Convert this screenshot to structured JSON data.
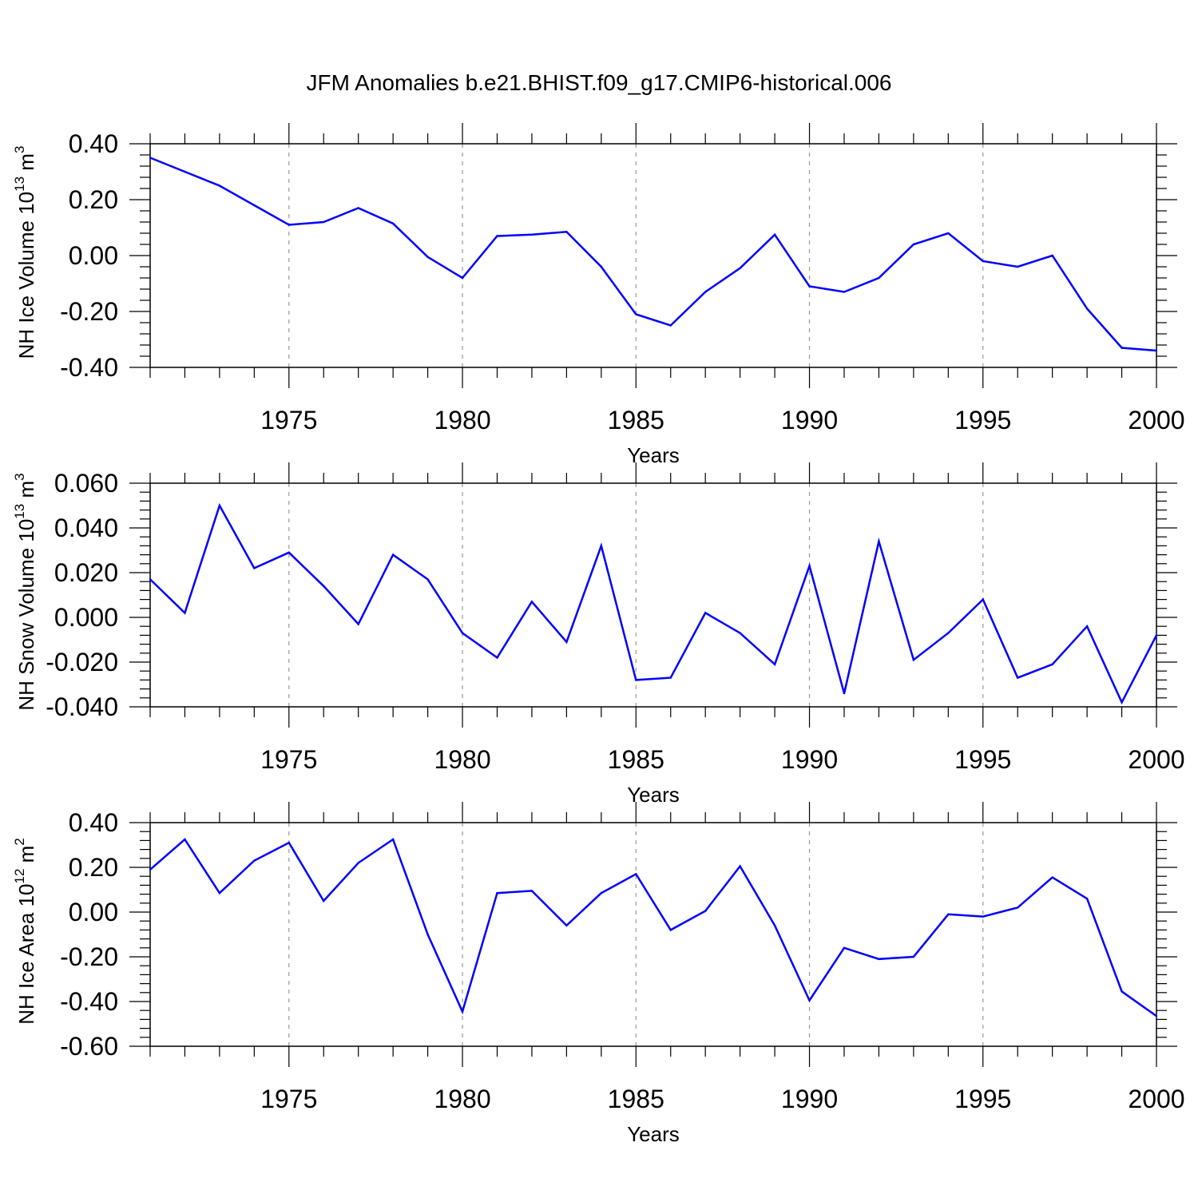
{
  "title": "JFM Anomalies b.e21.BHIST.f09_g17.CMIP6-historical.006",
  "line_color": "#0000ff",
  "chart_data": [
    {
      "type": "line",
      "ylabel": "NH Ice Volume",
      "yunit_base": "10",
      "yunit_exp": "13",
      "yunit_tail": "m",
      "yunit_tail_exp": "3",
      "xlabel": "Years",
      "xlim": [
        1971,
        2000
      ],
      "ylim": [
        -0.4,
        0.4
      ],
      "xticks": [
        1975,
        1980,
        1985,
        1990,
        1995,
        2000
      ],
      "yticks": [
        -0.4,
        -0.2,
        0.0,
        0.2,
        0.4
      ],
      "ytick_labels": [
        "-0.40",
        "-0.20",
        "0.00",
        "0.20",
        "0.40"
      ],
      "x": [
        1971,
        1972,
        1973,
        1974,
        1975,
        1976,
        1977,
        1978,
        1979,
        1980,
        1981,
        1982,
        1983,
        1984,
        1985,
        1986,
        1987,
        1988,
        1989,
        1990,
        1991,
        1992,
        1993,
        1994,
        1995,
        1996,
        1997,
        1998,
        1999,
        2000
      ],
      "y": [
        0.35,
        0.3,
        0.25,
        0.18,
        0.11,
        0.12,
        0.17,
        0.115,
        -0.005,
        -0.08,
        0.07,
        0.075,
        0.085,
        -0.04,
        -0.21,
        -0.25,
        -0.13,
        -0.045,
        0.075,
        -0.11,
        -0.13,
        -0.08,
        0.04,
        0.08,
        -0.02,
        -0.04,
        0.0,
        -0.19,
        -0.33,
        -0.34
      ]
    },
    {
      "type": "line",
      "ylabel": "NH Snow Volume",
      "yunit_base": "10",
      "yunit_exp": "13",
      "yunit_tail": "m",
      "yunit_tail_exp": "3",
      "xlabel": "Years",
      "xlim": [
        1971,
        2000
      ],
      "ylim": [
        -0.04,
        0.06
      ],
      "xticks": [
        1975,
        1980,
        1985,
        1990,
        1995,
        2000
      ],
      "yticks": [
        -0.04,
        -0.02,
        0.0,
        0.02,
        0.04,
        0.06
      ],
      "ytick_labels": [
        "-0.040",
        "-0.020",
        "0.000",
        "0.020",
        "0.040",
        "0.060"
      ],
      "x": [
        1971,
        1972,
        1973,
        1974,
        1975,
        1976,
        1977,
        1978,
        1979,
        1980,
        1981,
        1982,
        1983,
        1984,
        1985,
        1986,
        1987,
        1988,
        1989,
        1990,
        1991,
        1992,
        1993,
        1994,
        1995,
        1996,
        1997,
        1998,
        1999,
        2000
      ],
      "y": [
        0.017,
        0.002,
        0.05,
        0.022,
        0.029,
        0.014,
        -0.003,
        0.028,
        0.017,
        -0.007,
        -0.018,
        0.007,
        -0.011,
        0.032,
        -0.028,
        -0.027,
        0.002,
        -0.007,
        -0.021,
        0.023,
        -0.034,
        0.034,
        -0.019,
        -0.007,
        0.008,
        -0.027,
        -0.021,
        -0.004,
        -0.038,
        -0.008
      ]
    },
    {
      "type": "line",
      "ylabel": "NH Ice Area",
      "yunit_base": "10",
      "yunit_exp": "12",
      "yunit_tail": "m",
      "yunit_tail_exp": "2",
      "xlabel": "Years",
      "xlim": [
        1971,
        2000
      ],
      "ylim": [
        -0.6,
        0.4
      ],
      "xticks": [
        1975,
        1980,
        1985,
        1990,
        1995,
        2000
      ],
      "yticks": [
        -0.6,
        -0.4,
        -0.2,
        0.0,
        0.2,
        0.4
      ],
      "ytick_labels": [
        "-0.60",
        "-0.40",
        "-0.20",
        "0.00",
        "0.20",
        "0.40"
      ],
      "x": [
        1971,
        1972,
        1973,
        1974,
        1975,
        1976,
        1977,
        1978,
        1979,
        1980,
        1981,
        1982,
        1983,
        1984,
        1985,
        1986,
        1987,
        1988,
        1989,
        1990,
        1991,
        1992,
        1993,
        1994,
        1995,
        1996,
        1997,
        1998,
        1999,
        2000
      ],
      "y": [
        0.19,
        0.325,
        0.085,
        0.23,
        0.31,
        0.05,
        0.22,
        0.325,
        -0.1,
        -0.445,
        0.085,
        0.095,
        -0.06,
        0.085,
        0.17,
        -0.08,
        0.005,
        0.205,
        -0.06,
        -0.395,
        -0.16,
        -0.21,
        -0.2,
        -0.01,
        -0.02,
        0.02,
        0.155,
        0.06,
        -0.355,
        -0.465
      ]
    }
  ]
}
